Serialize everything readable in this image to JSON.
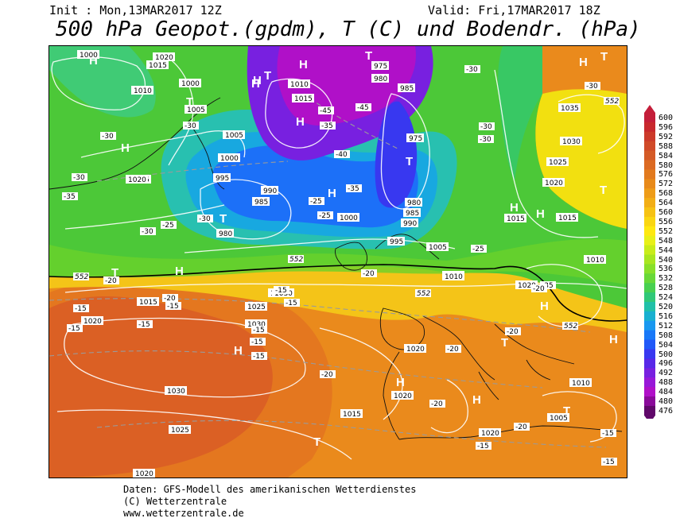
{
  "header": {
    "init": "Init : Mon,13MAR2017 12Z",
    "valid": "Valid: Fri,17MAR2017 18Z",
    "title": "500 hPa Geopot.(gpdm), T (C) und Bodendr. (hPa)"
  },
  "footer": {
    "line1": "Daten: GFS-Modell des amerikanischen Wetterdienstes",
    "line2": "(C) Wetterzentrale",
    "line3": "www.wetterzentrale.de"
  },
  "scale": {
    "labels": [
      "600",
      "596",
      "592",
      "588",
      "584",
      "580",
      "576",
      "572",
      "568",
      "564",
      "560",
      "556",
      "552",
      "548",
      "544",
      "540",
      "536",
      "532",
      "528",
      "524",
      "520",
      "516",
      "512",
      "508",
      "504",
      "500",
      "496",
      "492",
      "488",
      "484",
      "480",
      "476"
    ],
    "colors": [
      "#c41e3a",
      "#c8282d",
      "#cc3a2a",
      "#d04a28",
      "#d45a26",
      "#dc6a22",
      "#e27a1e",
      "#e88a1a",
      "#ee9c18",
      "#f2ae16",
      "#f6c214",
      "#fad612",
      "#fee810",
      "#e8f018",
      "#c8ec1a",
      "#a8e620",
      "#88e02a",
      "#68d838",
      "#48d050",
      "#30c878",
      "#20c0a8",
      "#18b0d0",
      "#1898f0",
      "#1878f8",
      "#2058f8",
      "#3838f0",
      "#5828e8",
      "#7820e0",
      "#9818d8",
      "#b010c8",
      "#8a0a9a",
      "#60086a"
    ]
  },
  "map": {
    "labels": {
      "highs": [
        "H",
        "H",
        "H",
        "H",
        "H",
        "H",
        "H",
        "H",
        "H",
        "H",
        "H",
        "H",
        "H",
        "H",
        "H",
        "H"
      ],
      "lows": [
        "T",
        "T",
        "T",
        "T",
        "T",
        "T",
        "T",
        "T",
        "T",
        "T",
        "T"
      ],
      "pressure": [
        "1000",
        "1020",
        "1015",
        "1010",
        "1000",
        "1005",
        "1010",
        "1015",
        "1005",
        "1000",
        "995",
        "990",
        "985",
        "980",
        "975",
        "980",
        "985",
        "975",
        "980",
        "985",
        "990",
        "995",
        "1000",
        "1005",
        "1010",
        "1015",
        "1020",
        "1025",
        "1030",
        "1035",
        "1030",
        "1025",
        "1020",
        "1015",
        "1010",
        "1015",
        "1020",
        "1025",
        "1030",
        "1020",
        "1015",
        "1020",
        "1010",
        "1005",
        "1010",
        "1020",
        "1015",
        "1020",
        "1025",
        "1030",
        "1020"
      ],
      "temps": [
        "-30",
        "-30",
        "-35",
        "-30",
        "-30",
        "-25",
        "-30",
        "-35",
        "-40",
        "-45",
        "-45",
        "-35",
        "-30",
        "-25",
        "-25",
        "-30",
        "-30",
        "-30",
        "-35",
        "-25",
        "-20",
        "-20",
        "-15",
        "-15",
        "-15",
        "-15",
        "-15",
        "-20",
        "-20",
        "-20",
        "-20",
        "-15",
        "-15",
        "-20",
        "-15",
        "-15",
        "-20",
        "-15",
        "-20",
        "-15",
        "-15"
      ],
      "contour552": [
        "552",
        "552",
        "552",
        "552",
        "552"
      ]
    }
  }
}
